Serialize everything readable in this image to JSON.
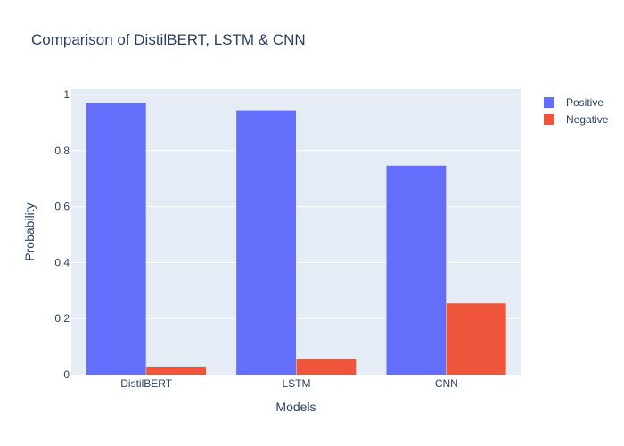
{
  "chart_data": {
    "type": "bar",
    "title": "Comparison of DistilBERT, LSTM & CNN",
    "xlabel": "Models",
    "ylabel": "Probability",
    "categories": [
      "DistilBERT",
      "LSTM",
      "CNN"
    ],
    "series": [
      {
        "name": "Positive",
        "values": [
          0.971,
          0.944,
          0.746
        ],
        "color": "#636efa"
      },
      {
        "name": "Negative",
        "values": [
          0.029,
          0.056,
          0.254
        ],
        "color": "#ef553b"
      }
    ],
    "ylim": [
      0,
      1
    ],
    "yticks": [
      0,
      0.2,
      0.4,
      0.6,
      0.8,
      1
    ],
    "ytick_labels": [
      "0",
      "0.2",
      "0.4",
      "0.6",
      "0.8",
      "1"
    ],
    "grid": true,
    "legend_position": "top-right",
    "plot_background": "#e5ecf6"
  }
}
